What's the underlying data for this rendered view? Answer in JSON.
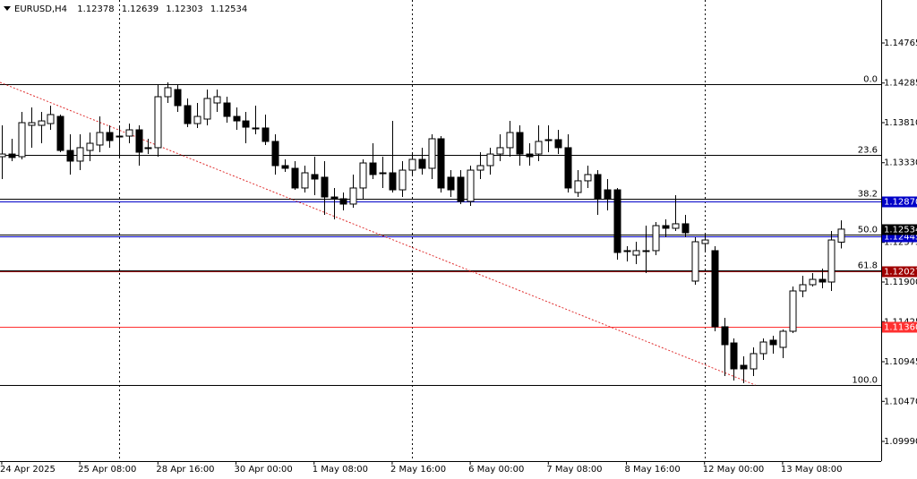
{
  "chart_data": {
    "type": "candlestick",
    "title": "EURUSD,H4",
    "ohlc": [
      [
        1.13402,
        1.13778,
        1.13134,
        1.13434
      ],
      [
        1.13434,
        1.13617,
        1.13349,
        1.13392
      ],
      [
        1.13402,
        1.13939,
        1.1337,
        1.1381
      ],
      [
        1.13778,
        1.13992,
        1.1351,
        1.1381
      ],
      [
        1.13778,
        1.13939,
        1.13563,
        1.13831
      ],
      [
        1.13799,
        1.14014,
        1.13724,
        1.13907
      ],
      [
        1.13885,
        1.13907,
        1.13456,
        1.13477
      ],
      [
        1.13477,
        1.13671,
        1.13188,
        1.13349
      ],
      [
        1.13349,
        1.13671,
        1.13241,
        1.1351
      ],
      [
        1.13477,
        1.13692,
        1.13349,
        1.13563
      ],
      [
        1.13542,
        1.13885,
        1.13456,
        1.13692
      ],
      [
        1.13692,
        1.13778,
        1.1351,
        1.13595
      ],
      [
        1.13649,
        1.13778,
        1.13402,
        1.13649
      ],
      [
        1.13649,
        1.13799,
        1.13563,
        1.13724
      ],
      [
        1.13724,
        1.13778,
        1.13295,
        1.13456
      ],
      [
        1.1351,
        1.13617,
        1.13434,
        1.1351
      ],
      [
        1.1351,
        1.14261,
        1.13402,
        1.14121
      ],
      [
        1.14121,
        1.14293,
        1.14046,
        1.14229
      ],
      [
        1.14207,
        1.14261,
        1.13939,
        1.14014
      ],
      [
        1.14014,
        1.141,
        1.13756,
        1.13799
      ],
      [
        1.13799,
        1.14046,
        1.13746,
        1.13885
      ],
      [
        1.13853,
        1.14207,
        1.13778,
        1.141
      ],
      [
        1.14046,
        1.14207,
        1.13939,
        1.14121
      ],
      [
        1.14046,
        1.14121,
        1.1381,
        1.13885
      ],
      [
        1.13885,
        1.13992,
        1.13724,
        1.13831
      ],
      [
        1.13831,
        1.13939,
        1.13563,
        1.13756
      ],
      [
        1.13746,
        1.14014,
        1.13671,
        1.13746
      ],
      [
        1.13746,
        1.13907,
        1.13542,
        1.13585
      ],
      [
        1.13585,
        1.13671,
        1.13188,
        1.13295
      ],
      [
        1.13295,
        1.1337,
        1.1322,
        1.13263
      ],
      [
        1.13263,
        1.13349,
        1.13005,
        1.13027
      ],
      [
        1.13027,
        1.13295,
        1.12973,
        1.13209
      ],
      [
        1.13188,
        1.13402,
        1.12941,
        1.13134
      ],
      [
        1.13156,
        1.13349,
        1.12705,
        1.12919
      ],
      [
        1.12919,
        1.13027,
        1.12651,
        1.12898
      ],
      [
        1.12898,
        1.12973,
        1.12758,
        1.12834
      ],
      [
        1.12834,
        1.13188,
        1.12791,
        1.13027
      ],
      [
        1.13027,
        1.1337,
        1.12898,
        1.13327
      ],
      [
        1.13327,
        1.13563,
        1.13134,
        1.13188
      ],
      [
        1.13209,
        1.13402,
        1.13027,
        1.13209
      ],
      [
        1.13209,
        1.13831,
        1.12973,
        1.13005
      ],
      [
        1.13005,
        1.13349,
        1.12919,
        1.13241
      ],
      [
        1.13241,
        1.13456,
        1.13188,
        1.1337
      ],
      [
        1.1337,
        1.1351,
        1.13188,
        1.13263
      ],
      [
        1.13263,
        1.13671,
        1.13134,
        1.13617
      ],
      [
        1.13617,
        1.13649,
        1.12973,
        1.13027
      ],
      [
        1.13156,
        1.13241,
        1.12919,
        1.13005
      ],
      [
        1.13156,
        1.13241,
        1.12834,
        1.12866
      ],
      [
        1.12866,
        1.13295,
        1.12812,
        1.13241
      ],
      [
        1.13241,
        1.13456,
        1.13134,
        1.13295
      ],
      [
        1.13295,
        1.1351,
        1.13188,
        1.13434
      ],
      [
        1.13434,
        1.13671,
        1.13349,
        1.1351
      ],
      [
        1.1351,
        1.13831,
        1.13402,
        1.13692
      ],
      [
        1.13692,
        1.13778,
        1.13295,
        1.13434
      ],
      [
        1.13434,
        1.13563,
        1.13295,
        1.13402
      ],
      [
        1.13434,
        1.13778,
        1.13349,
        1.13585
      ],
      [
        1.13606,
        1.13778,
        1.13456,
        1.13606
      ],
      [
        1.13606,
        1.13724,
        1.13434,
        1.1351
      ],
      [
        1.1351,
        1.13671,
        1.12973,
        1.13027
      ],
      [
        1.12973,
        1.13241,
        1.12919,
        1.13113
      ],
      [
        1.13113,
        1.13295,
        1.13027,
        1.13188
      ],
      [
        1.13188,
        1.13241,
        1.12705,
        1.12898
      ],
      [
        1.13005,
        1.13134,
        1.12758,
        1.12898
      ],
      [
        1.13005,
        1.13027,
        1.12168,
        1.12254
      ],
      [
        1.12276,
        1.12329,
        1.12147,
        1.12276
      ],
      [
        1.12222,
        1.12383,
        1.12115,
        1.12276
      ],
      [
        1.12276,
        1.12576,
        1.12007,
        1.12276
      ],
      [
        1.12276,
        1.12619,
        1.12222,
        1.12576
      ],
      [
        1.12576,
        1.12651,
        1.12437,
        1.12544
      ],
      [
        1.12544,
        1.12941,
        1.12512,
        1.12598
      ],
      [
        1.12598,
        1.12705,
        1.12437,
        1.1249
      ],
      [
        1.11911,
        1.12437,
        1.11868,
        1.12383
      ],
      [
        1.12361,
        1.12469,
        1.12276,
        1.12404
      ],
      [
        1.12276,
        1.12329,
        1.1131,
        1.11364
      ],
      [
        1.11364,
        1.11471,
        1.10773,
        1.11149
      ],
      [
        1.1117,
        1.11224,
        1.1072,
        1.10859
      ],
      [
        1.10902,
        1.1101,
        1.10688,
        1.10859
      ],
      [
        1.10859,
        1.11117,
        1.10773,
        1.11042
      ],
      [
        1.11042,
        1.11224,
        1.10967,
        1.11181
      ],
      [
        1.11203,
        1.11256,
        1.11042,
        1.11149
      ],
      [
        1.11117,
        1.11331,
        1.10988,
        1.1131
      ],
      [
        1.1131,
        1.11846,
        1.11288,
        1.11793
      ],
      [
        1.11793,
        1.11975,
        1.11718,
        1.11868
      ],
      [
        1.11868,
        1.12007,
        1.11846,
        1.11932
      ],
      [
        1.11932,
        1.12061,
        1.11825,
        1.119
      ],
      [
        1.119,
        1.12512,
        1.11793,
        1.12404
      ],
      [
        1.12378,
        1.12639,
        1.12303,
        1.12534
      ]
    ],
    "xlim": [
      -0.18,
      90.1
    ],
    "xticks": [
      {
        "value": 0,
        "label": "24 Apr 2025"
      },
      {
        "value": 8,
        "label": "25 Apr 08:00"
      },
      {
        "value": 16,
        "label": "28 Apr 16:00"
      },
      {
        "value": 24,
        "label": "30 Apr 00:00"
      },
      {
        "value": 32,
        "label": "1 May 08:00"
      },
      {
        "value": 40,
        "label": "2 May 16:00"
      },
      {
        "value": 48,
        "label": "6 May 00:00"
      },
      {
        "value": 56,
        "label": "7 May 08:00"
      },
      {
        "value": 64,
        "label": "8 May 16:00"
      },
      {
        "value": 72,
        "label": "12 May 00:00"
      },
      {
        "value": 80,
        "label": "13 May 08:00"
      }
    ],
    "xgrid": [
      12,
      42,
      72
    ],
    "ylim": [
      1.09754,
      1.1528
    ],
    "yticks": [
      1.14765,
      1.14285,
      {
        "value": 1.1381,
        "label": "1.13810"
      },
      {
        "value": 1.1333,
        "label": "1.13330"
      },
      1.12375,
      {
        "value": 1.119,
        "label": "1.11900"
      },
      1.11425,
      1.10945,
      {
        "value": 1.1047,
        "label": "1.10470"
      },
      {
        "value": 1.0999,
        "label": "1.09990"
      }
    ],
    "fib_levels": [
      {
        "label": "0.0",
        "value": 1.14271
      },
      {
        "label": "23.6",
        "value": 1.1342
      },
      {
        "label": "38.2",
        "value": 1.12894
      },
      {
        "label": "50.0",
        "value": 1.12468
      },
      {
        "label": "61.8",
        "value": 1.12043
      },
      {
        "label": "100.0",
        "value": 1.10666
      }
    ],
    "fib_color": "#000000",
    "price_lines": [
      {
        "value": 1.1287,
        "label": "1.12870",
        "color": "#0000c8"
      },
      {
        "value": 1.12445,
        "color": "#0000c8"
      },
      {
        "value": 1.12027,
        "color": "#a00000"
      },
      {
        "value": 1.1136,
        "label": "1.11360",
        "color": "#ff3030"
      }
    ],
    "trendline": {
      "x": [
        -0.18,
        77.2
      ],
      "y": [
        1.14293,
        1.10666
      ],
      "color": "#e03030"
    }
  }
}
